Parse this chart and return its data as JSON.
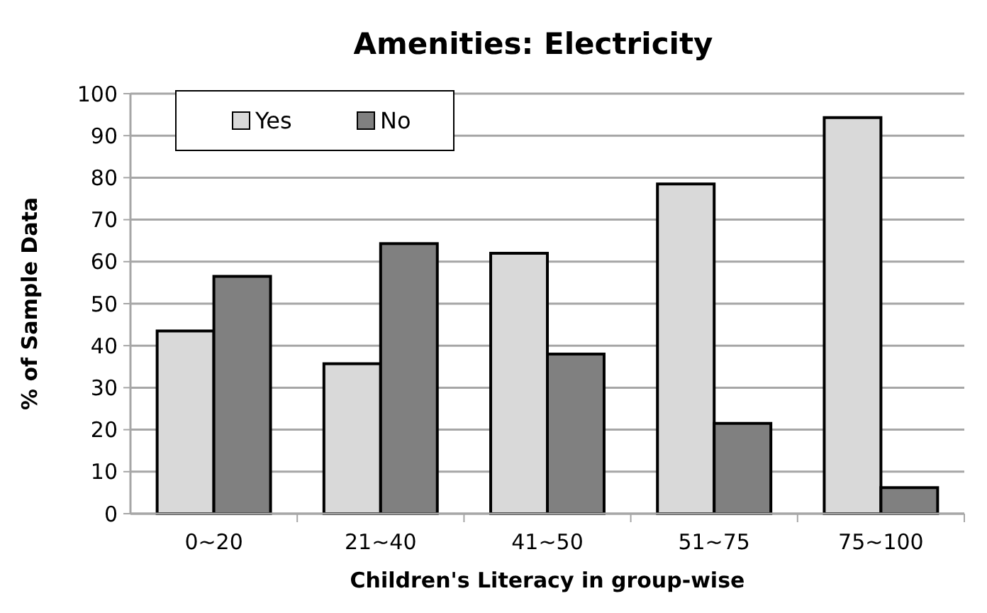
{
  "chart_data": {
    "type": "bar",
    "title": "Amenities: Electricity",
    "xlabel": "Children's Literacy in group-wise",
    "ylabel": "% of Sample Data",
    "categories": [
      "0~20",
      "21~40",
      "41~50",
      "51~75",
      "75~100"
    ],
    "series": [
      {
        "name": "Yes",
        "color": "#d9d9d9",
        "values": [
          43.5,
          35.7,
          62,
          78.5,
          94.3
        ]
      },
      {
        "name": "No",
        "color": "#808080",
        "values": [
          56.5,
          64.3,
          38,
          21.5,
          6.2
        ]
      }
    ],
    "ylim": [
      0,
      100
    ],
    "yticks": [
      0,
      10,
      20,
      30,
      40,
      50,
      60,
      70,
      80,
      90,
      100
    ],
    "grid": "y",
    "legend": "top left"
  }
}
